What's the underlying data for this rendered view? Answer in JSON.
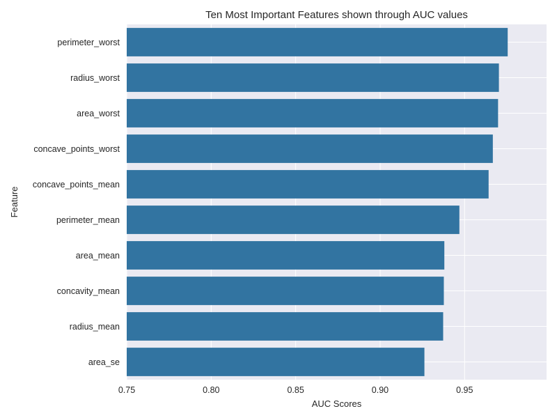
{
  "chart_data": {
    "type": "bar",
    "orientation": "horizontal",
    "title": "Ten Most Important Features shown through AUC values",
    "xlabel": "AUC Scores",
    "ylabel": "Feature",
    "xlim": [
      0.75,
      0.9985
    ],
    "xticks": [
      "0.75",
      "0.80",
      "0.85",
      "0.90",
      "0.95"
    ],
    "grid": true,
    "categories": [
      "perimeter_worst",
      "radius_worst",
      "area_worst",
      "concave_points_worst",
      "concave_points_mean",
      "perimeter_mean",
      "area_mean",
      "concavity_mean",
      "radius_mean",
      "area_se"
    ],
    "values": [
      0.9755,
      0.9703,
      0.9698,
      0.9667,
      0.9642,
      0.9469,
      0.938,
      0.9377,
      0.9373,
      0.9262
    ],
    "colors": {
      "bar": "#3274a1",
      "plot_background": "#eaeaf2",
      "grid": "#ffffff",
      "text": "#262626"
    }
  }
}
